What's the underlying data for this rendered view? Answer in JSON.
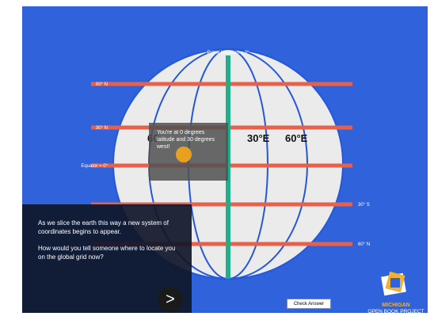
{
  "globe": {
    "prime_meridian_label": "Prime Meridian = 0°",
    "latitude_labels": [
      "60° N",
      "30° N",
      "Equator = 0°",
      "30° S",
      "60° N"
    ],
    "longitude_labels": [
      "60",
      "30°E",
      "60°E"
    ]
  },
  "tooltip": {
    "text": "You're at 0 degrees latitude and 30 degrees west!"
  },
  "panel": {
    "paragraphs": [
      "As we slice the earth this way a new system of coordinates begins to appear.",
      "How would you tell someone where to locate you on the global grid now?"
    ],
    "next_button": ">"
  },
  "check_button": "Check Answer",
  "logo": {
    "line1": "MICHIGAN",
    "line2": "OPEN BOOK PROJECT"
  }
}
